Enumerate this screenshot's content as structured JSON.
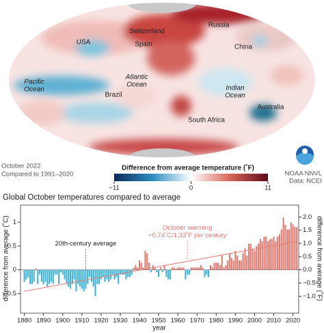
{
  "map": {
    "labels": [
      {
        "lines": [
          "USA"
        ]
      },
      {
        "lines": [
          "Switzerland"
        ]
      },
      {
        "lines": [
          "Russia"
        ]
      },
      {
        "lines": [
          "Spain"
        ]
      },
      {
        "lines": [
          "China"
        ]
      },
      {
        "lines": [
          "Pacific",
          "Ocean"
        ]
      },
      {
        "lines": [
          "Atlantic",
          "Ocean"
        ]
      },
      {
        "lines": [
          "Brazil"
        ]
      },
      {
        "lines": [
          "Indian",
          "Ocean"
        ]
      },
      {
        "lines": [
          "Australia"
        ]
      },
      {
        "lines": [
          "South Africa"
        ]
      }
    ],
    "period": "October 2022",
    "baseline": "Compared to 1991–2020",
    "colorbar_title": "Difference from average temperature (˚F)",
    "colorbar_lim": [
      -11,
      11
    ],
    "colorbar_ticks": [
      {
        "value": -11,
        "label": "−11"
      },
      0,
      11
    ],
    "credit": "NOAA NNVL",
    "source": "Data: NCEI"
  },
  "chart_data": {
    "type": "bar",
    "title": "Global October temperatures compared to average",
    "x_label": "year",
    "y_label": "difference from average (˚C)",
    "y2_label": "difference from average (˚F)",
    "x_start": 1880,
    "xlim": [
      1878,
      2023
    ],
    "xticks": [
      1880,
      1890,
      1900,
      1910,
      1920,
      1930,
      1940,
      1950,
      1960,
      1970,
      1980,
      1990,
      2000,
      2010,
      2020
    ],
    "ylim": [
      -0.91,
      1.36
    ],
    "yticks": [
      -0.5,
      0.0,
      0.5,
      1.0
    ],
    "y2lim": [
      -1.64,
      2.45
    ],
    "y2ticks": [
      {
        "value": -1.0,
        "label": "−1.0"
      },
      {
        "value": -0.5,
        "label": "−0.5"
      },
      {
        "value": 0,
        "label": "0.0"
      },
      0.5,
      {
        "value": 1,
        "label": "1.0"
      },
      1.5,
      {
        "value": 2,
        "label": "2.0"
      }
    ],
    "positive_color": "#e27b72",
    "negative_color": "#3db3d8",
    "values": [
      -0.25,
      -0.2,
      -0.15,
      -0.3,
      -0.3,
      -0.25,
      0.03,
      -0.3,
      -0.1,
      -0.25,
      -0.3,
      -0.25,
      -0.35,
      -0.3,
      -0.25,
      -0.3,
      -0.1,
      -0.1,
      -0.3,
      -0.05,
      -0.1,
      -0.2,
      -0.3,
      -0.35,
      -0.4,
      -0.3,
      -0.2,
      -0.45,
      -0.3,
      -0.35,
      -0.4,
      -0.45,
      -0.4,
      -0.3,
      -0.15,
      -0.25,
      -0.35,
      -0.55,
      -0.3,
      -0.3,
      -0.2,
      -0.15,
      -0.25,
      -0.2,
      -0.25,
      -0.2,
      -0.1,
      -0.2,
      -0.15,
      -0.3,
      -0.1,
      -0.1,
      -0.1,
      -0.2,
      -0.15,
      -0.15,
      -0.1,
      0.05,
      0.1,
      0.05,
      0.2,
      0.15,
      0.05,
      0.4,
      0.35,
      0.15,
      -0.05,
      0.1,
      0.05,
      -0.05,
      -0.15,
      0.05,
      -0.05,
      0.1,
      -0.15,
      -0.2,
      -0.2,
      0.05,
      0.05,
      0.02,
      0.05,
      0.05,
      0.05,
      0.05,
      -0.2,
      -0.1,
      -0.1,
      0.05,
      0.05,
      0.05,
      0.05,
      0.05,
      0.1,
      0.05,
      -0.15,
      -0.1,
      -0.15,
      0.1,
      0.05,
      0.15,
      0.15,
      0.15,
      0.1,
      0.3,
      0.05,
      0.1,
      0.2,
      0.35,
      0.25,
      0.2,
      0.4,
      0.3,
      0.2,
      0.2,
      0.35,
      0.45,
      0.3,
      0.55,
      0.55,
      0.45,
      0.4,
      0.5,
      0.55,
      0.65,
      0.6,
      0.7,
      0.7,
      0.6,
      0.65,
      0.65,
      0.7,
      0.6,
      0.7,
      0.75,
      0.85,
      1.1,
      0.95,
      0.85,
      0.85,
      1.0,
      0.95,
      0.9,
      0.9
    ],
    "trend": {
      "x": [
        1880,
        2022
      ],
      "values": [
        -0.45,
        0.6
      ],
      "color": "#e27b72"
    },
    "annotations": [
      {
        "x": 1912,
        "y": 0,
        "lines": [
          "20th-century average"
        ]
      },
      {
        "x": 1965,
        "y": 0.2,
        "lines": [
          "October warming",
          "+0.74˚C/1.33˚F per century"
        ]
      }
    ]
  }
}
